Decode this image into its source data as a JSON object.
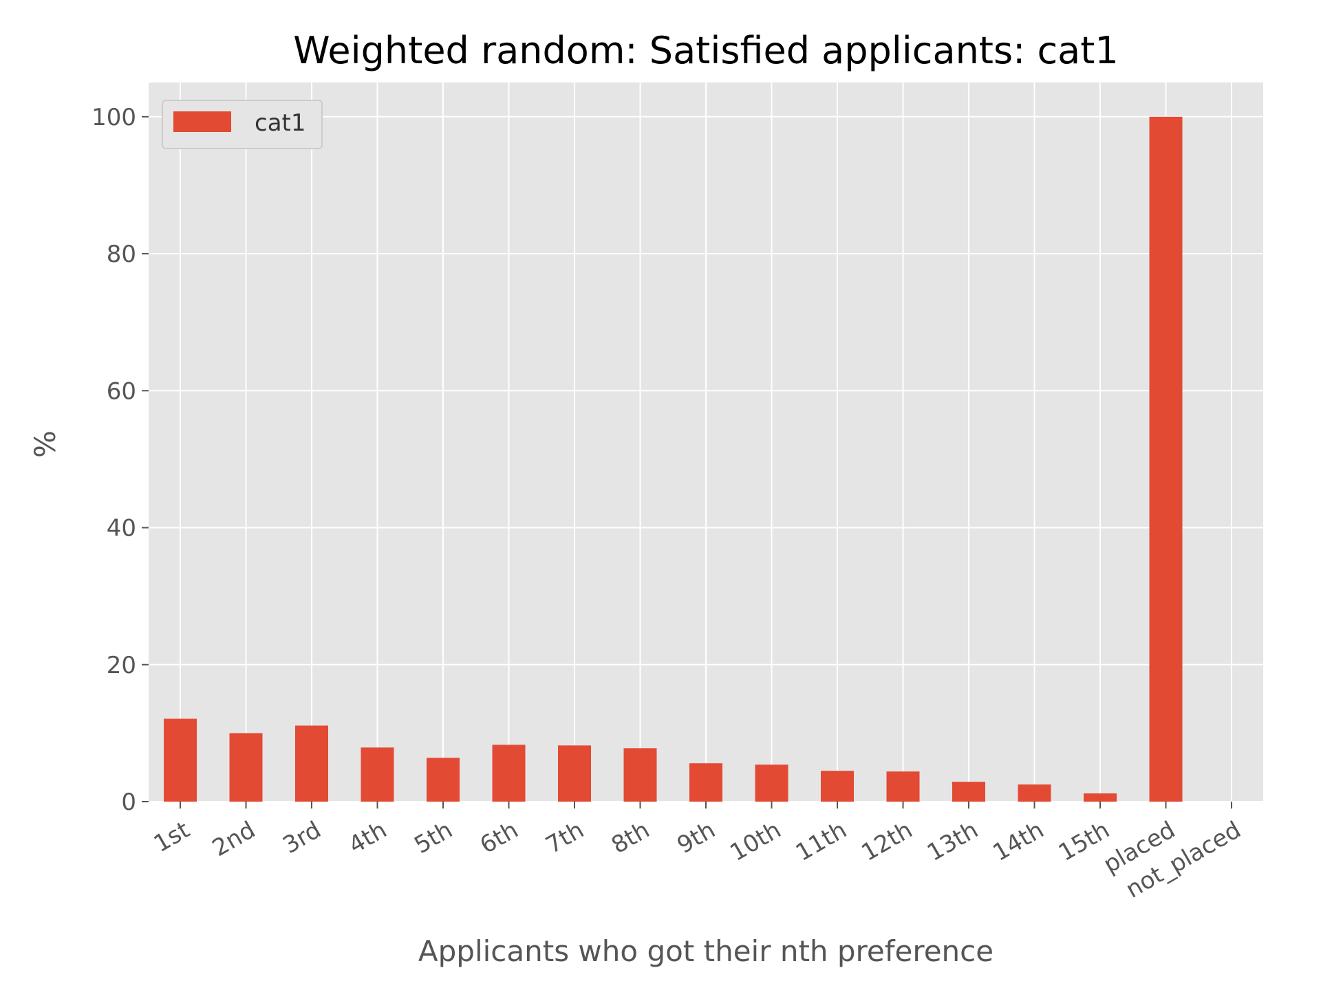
{
  "chart_data": {
    "type": "bar",
    "title": "Weighted random: Satisfied applicants: cat1",
    "xlabel": "Applicants who got their nth preference",
    "ylabel": "%",
    "categories": [
      "1st",
      "2nd",
      "3rd",
      "4th",
      "5th",
      "6th",
      "7th",
      "8th",
      "9th",
      "10th",
      "11th",
      "12th",
      "13th",
      "14th",
      "15th",
      "placed",
      "not_placed"
    ],
    "series": [
      {
        "name": "cat1",
        "values": [
          12.1,
          10.0,
          11.1,
          7.9,
          6.4,
          8.3,
          8.2,
          7.8,
          5.6,
          5.4,
          4.5,
          4.4,
          2.9,
          2.5,
          1.2,
          100.0,
          0.0
        ]
      }
    ],
    "ylim": [
      0,
      105
    ],
    "yticks": [
      0,
      20,
      40,
      60,
      80,
      100
    ],
    "grid": true,
    "legend_position": "top-left",
    "colors": {
      "bar": "#E24A33",
      "plot_background": "#E5E5E5",
      "grid": "#FFFFFF"
    }
  }
}
